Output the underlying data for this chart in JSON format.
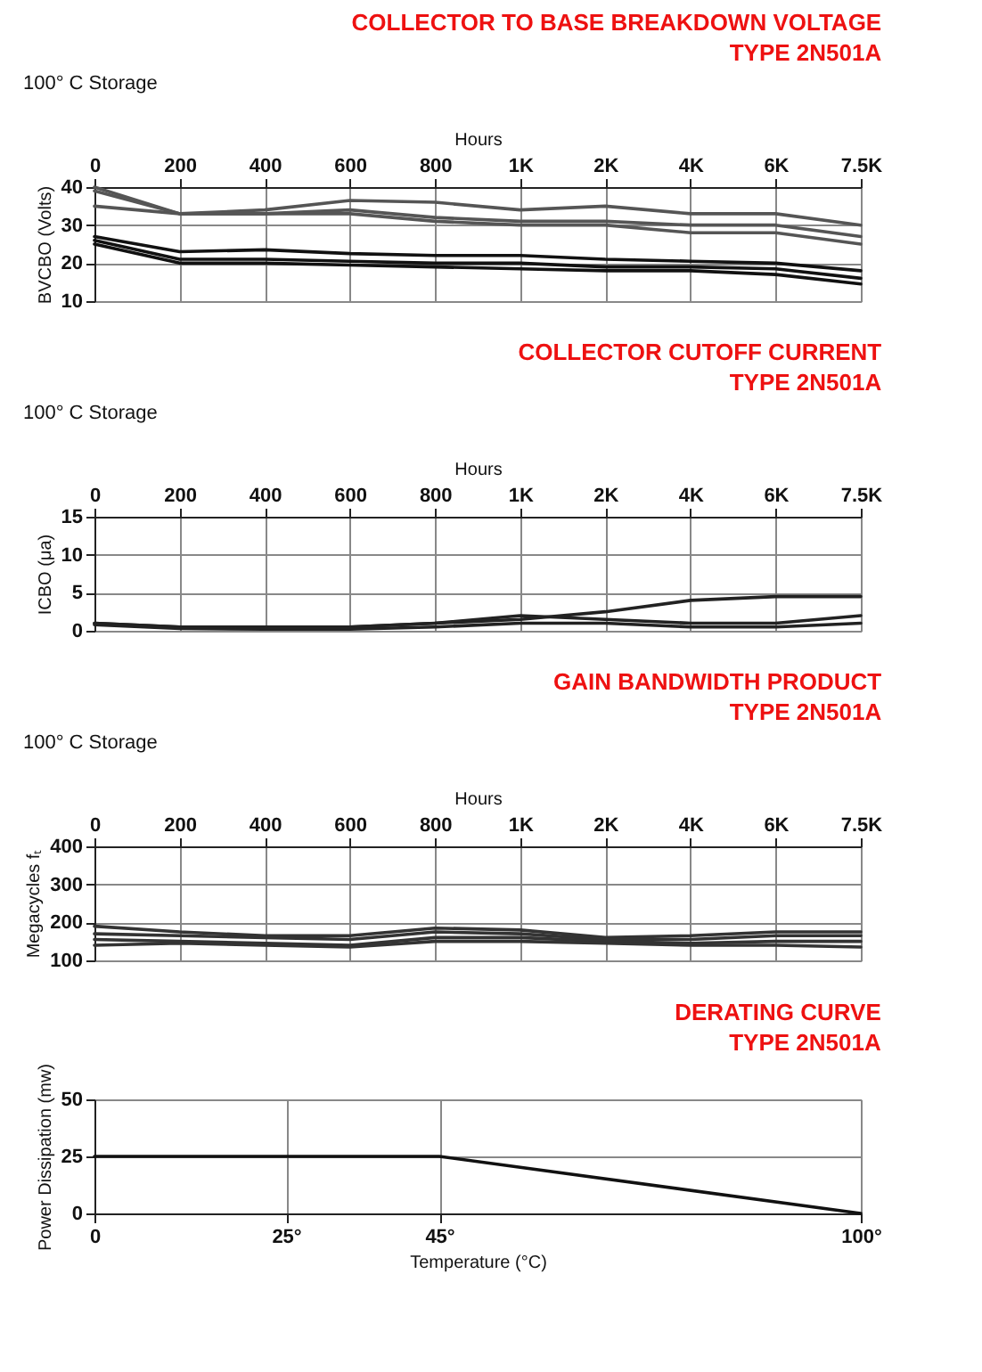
{
  "chart_data": [
    {
      "type": "line",
      "title": "COLLECTOR TO BASE BREAKDOWN VOLTAGE\nTYPE 2N501A",
      "subtitle": "100° C Storage",
      "xlabel": "Hours",
      "ylabel": "BVCBO (Volts)",
      "grid": true,
      "line_style": "solid",
      "categories": [
        "0",
        "200",
        "400",
        "600",
        "800",
        "1K",
        "2K",
        "4K",
        "6K",
        "7.5K"
      ],
      "ylim": [
        10,
        40
      ],
      "yticks": [
        10,
        20,
        30,
        40
      ],
      "series": [
        {
          "color": "#555555",
          "values": [
            40,
            33,
            34,
            36.5,
            36,
            34,
            35,
            33,
            33,
            30
          ]
        },
        {
          "color": "#555555",
          "values": [
            35,
            33,
            33,
            34,
            32,
            31,
            31,
            30,
            30,
            27
          ]
        },
        {
          "color": "#555555",
          "values": [
            39,
            33,
            33,
            33,
            31,
            30,
            30,
            28,
            28,
            25
          ]
        },
        {
          "color": "#111111",
          "values": [
            27,
            23,
            23.5,
            22.5,
            22,
            22,
            21,
            20.5,
            20,
            18
          ]
        },
        {
          "color": "#111111",
          "values": [
            26,
            21,
            21,
            20.5,
            20,
            20,
            19,
            19,
            18.5,
            16
          ]
        },
        {
          "color": "#111111",
          "values": [
            25,
            20,
            20,
            19.5,
            19,
            18.5,
            18,
            18,
            17,
            14.5
          ]
        }
      ]
    },
    {
      "type": "line",
      "title": "COLLECTOR CUTOFF CURRENT\nTYPE 2N501A",
      "subtitle": "100° C Storage",
      "xlabel": "Hours",
      "ylabel": "ICBO (μa)",
      "grid": true,
      "line_style": "solid",
      "categories": [
        "0",
        "200",
        "400",
        "600",
        "800",
        "1K",
        "2K",
        "4K",
        "6K",
        "7.5K"
      ],
      "ylim": [
        0,
        15
      ],
      "yticks": [
        0,
        5,
        10,
        15
      ],
      "series": [
        {
          "color": "#222222",
          "values": [
            1,
            0.5,
            0.5,
            0.5,
            1,
            1.5,
            2.5,
            4,
            4.5,
            4.5
          ]
        },
        {
          "color": "#222222",
          "values": [
            1,
            0.5,
            0.3,
            0.5,
            1,
            2,
            1.5,
            1,
            1,
            2
          ]
        },
        {
          "color": "#222222",
          "values": [
            0.8,
            0.3,
            0.2,
            0.2,
            0.5,
            1,
            1,
            0.5,
            0.5,
            1
          ]
        }
      ]
    },
    {
      "type": "line",
      "title": "GAIN BANDWIDTH PRODUCT\nTYPE 2N501A",
      "subtitle": "100° C Storage",
      "xlabel": "Hours",
      "ylabel": "Megacycles fₜ",
      "grid": true,
      "line_style": "solid",
      "categories": [
        "0",
        "200",
        "400",
        "600",
        "800",
        "1K",
        "2K",
        "4K",
        "6K",
        "7.5K"
      ],
      "ylim": [
        100,
        400
      ],
      "yticks": [
        100,
        200,
        300,
        400
      ],
      "series": [
        {
          "color": "#333333",
          "values": [
            190,
            175,
            165,
            165,
            185,
            180,
            160,
            165,
            175,
            175
          ]
        },
        {
          "color": "#333333",
          "values": [
            170,
            165,
            160,
            155,
            175,
            170,
            155,
            155,
            165,
            165
          ]
        },
        {
          "color": "#333333",
          "values": [
            155,
            150,
            145,
            140,
            160,
            160,
            150,
            145,
            150,
            150
          ]
        },
        {
          "color": "#333333",
          "values": [
            140,
            145,
            140,
            135,
            150,
            150,
            145,
            140,
            140,
            135
          ]
        }
      ]
    },
    {
      "type": "line",
      "title": "DERATING CURVE\nTYPE 2N501A",
      "xlabel": "Temperature (°C)",
      "ylabel": "Power Dissipation (mw)",
      "grid": true,
      "line_style": "solid",
      "x": [
        0,
        45,
        100
      ],
      "xlim": [
        0,
        100
      ],
      "xticks": [
        0,
        {
          "value": 25,
          "label": "25°"
        },
        {
          "value": 45,
          "label": "45°"
        },
        {
          "value": 100,
          "label": "100°"
        }
      ],
      "ylim": [
        0,
        50
      ],
      "yticks": [
        0,
        25,
        50
      ],
      "series": [
        {
          "color": "#111111",
          "values": [
            25,
            25,
            0
          ]
        }
      ]
    }
  ]
}
